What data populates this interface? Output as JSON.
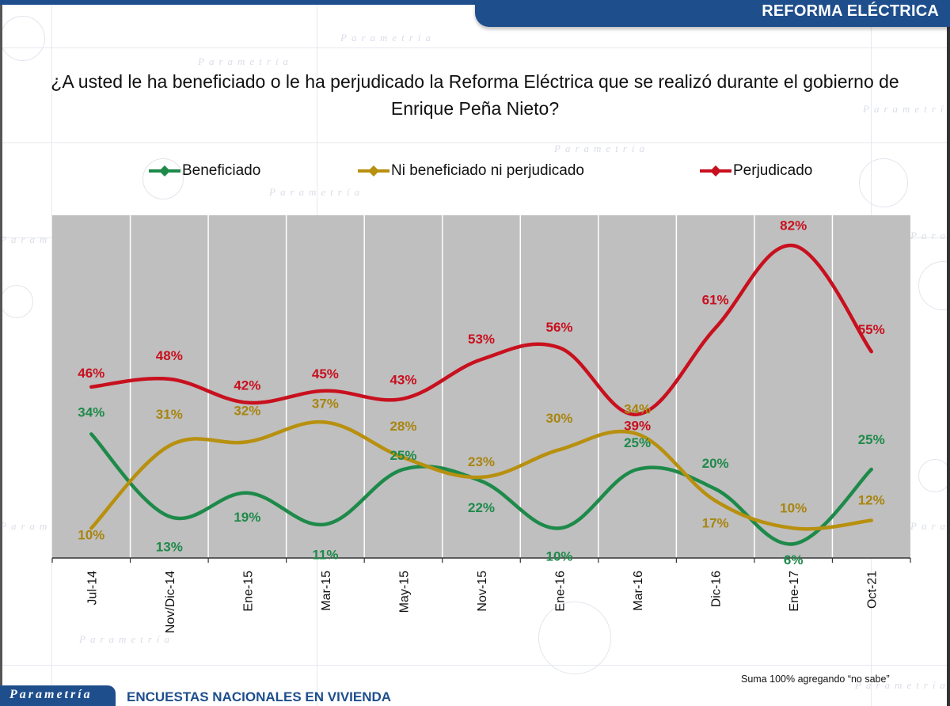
{
  "header": {
    "section_title": "REFORMA ELÉCTRICA"
  },
  "question": "¿A usted le ha beneficiado o le ha perjudicado la Reforma Eléctrica que se realizó durante el gobierno de Enrique Peña Nieto?",
  "footer": {
    "logo": "Parametría",
    "title": "ENCUESTAS NACIONALES  EN VIVIENDA",
    "note": "Suma 100% agregando “no sabe”"
  },
  "watermark": "Parametría",
  "colors": {
    "brand": "#1e4e8c",
    "plot_bg": "#bfbfbf",
    "beneficiado": "#1e8a4a",
    "ni": "#b8900f",
    "perjudicado": "#c8101e",
    "ni_label": "#a8850f"
  },
  "chart_data": {
    "type": "line",
    "title": "¿A usted le ha beneficiado o le ha perjudicado la Reforma Eléctrica que se realizó durante el gobierno de Enrique Peña Nieto?",
    "xlabel": "",
    "ylabel": "",
    "categories": [
      "Jul-14",
      "Nov/Dic-14",
      "Ene-15",
      "Mar-15",
      "May-15",
      "Nov-15",
      "Ene-16",
      "Mar-16",
      "Dic-16",
      "Ene-17",
      "Oct-21"
    ],
    "series": [
      {
        "name": "Beneficiado",
        "color": "#1e8a4a",
        "values": [
          34,
          13,
          19,
          11,
          25,
          22,
          10,
          25,
          20,
          6,
          25
        ],
        "labels": [
          "34%",
          "13%",
          "19%",
          "11%",
          "25%",
          "22%",
          "10%",
          "25%",
          "20%",
          "6%",
          "25%"
        ]
      },
      {
        "name": "Ni beneficiado ni perjudicado",
        "color": "#b8900f",
        "values": [
          10,
          31,
          32,
          37,
          28,
          23,
          30,
          34,
          17,
          10,
          12
        ],
        "labels": [
          "10%",
          "31%",
          "32%",
          "37%",
          "28%",
          "23%",
          "30%",
          "34%",
          "17%",
          "10%",
          "12%"
        ]
      },
      {
        "name": "Perjudicado",
        "color": "#c8101e",
        "values": [
          46,
          48,
          42,
          45,
          43,
          53,
          56,
          39,
          61,
          82,
          55
        ],
        "labels": [
          "46%",
          "48%",
          "42%",
          "45%",
          "43%",
          "53%",
          "56%",
          "39%",
          "61%",
          "82%",
          "55%"
        ]
      }
    ],
    "ylim": [
      0,
      90
    ],
    "grid": "vertical",
    "smooth": true,
    "legend": "top",
    "background": "#bfbfbf",
    "note": "Suma 100% agregando “no sabe”"
  }
}
